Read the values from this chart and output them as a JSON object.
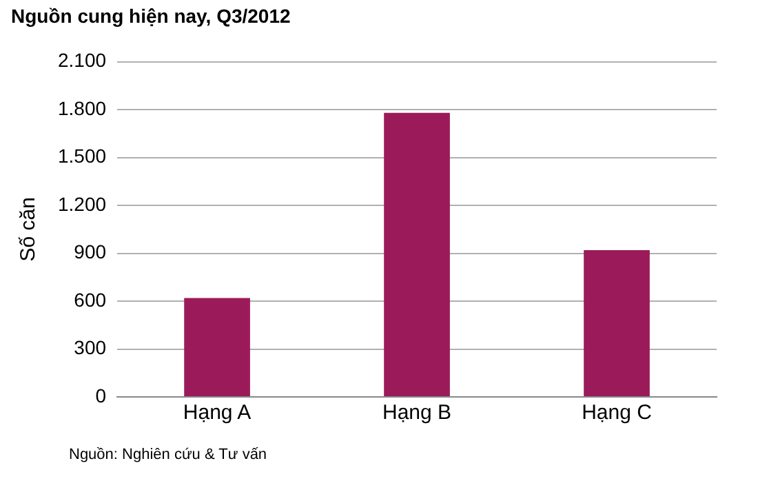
{
  "chart_data": {
    "type": "bar",
    "title": "Nguồn cung hiện nay, Q3/2012",
    "ylabel": "Số căn",
    "categories": [
      "Hạng A",
      "Hạng B",
      "Hạng C"
    ],
    "values": [
      620,
      1780,
      920
    ],
    "color": "#9b1b5a",
    "ylim": [
      0,
      2100
    ],
    "yticks": [
      0,
      300,
      600,
      900,
      {
        "value": 1200,
        "label": "1.200"
      },
      {
        "value": 1500,
        "label": "1.500"
      },
      {
        "value": 1800,
        "label": "1.800"
      },
      {
        "value": 2100,
        "label": "2.100"
      }
    ],
    "grid": "y",
    "annotations": [
      "Nguồn: Nghiên cứu & Tư vấn"
    ]
  }
}
